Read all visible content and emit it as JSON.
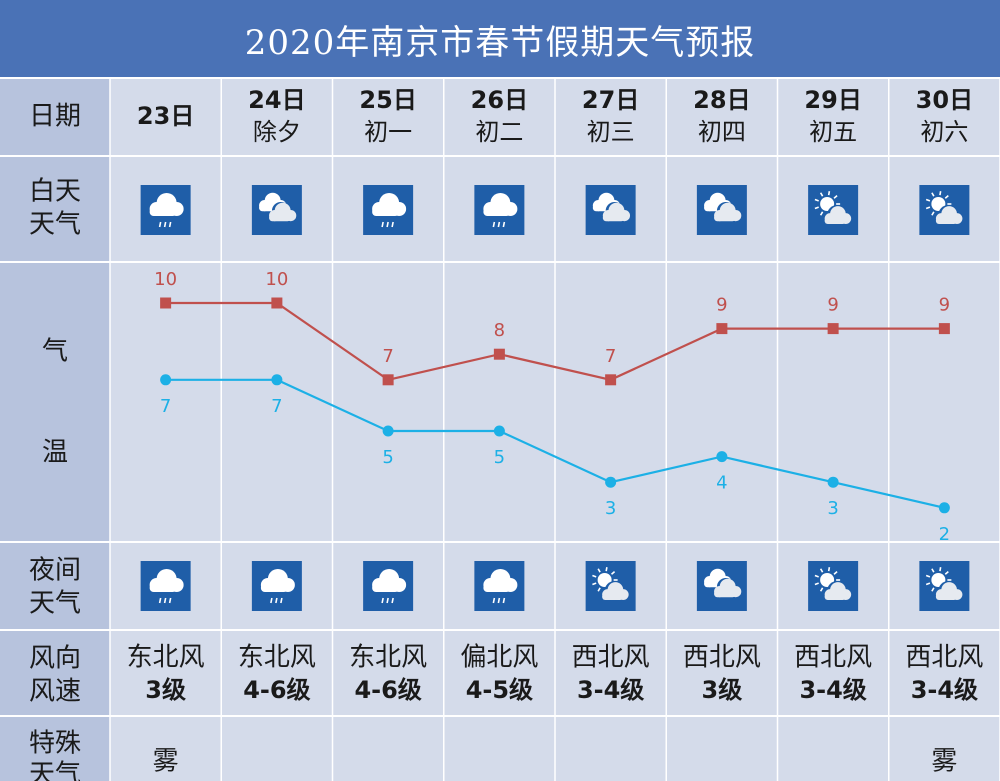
{
  "title": "2020年南京市春节假期天气预报",
  "row_labels": {
    "date": "日期",
    "day_weather": [
      "白天",
      "天气"
    ],
    "temp": [
      "气",
      "温"
    ],
    "night_weather": [
      "夜间",
      "天气"
    ],
    "wind": [
      "风向",
      "风速"
    ],
    "special": [
      "特殊",
      "天气"
    ]
  },
  "days": [
    {
      "date": "23日",
      "lunar": "",
      "day_icon": "rain-cloud-icon",
      "night_icon": "rain-cloud-icon",
      "wind_dir": "东北风",
      "wind_level": "3级",
      "special": "雾"
    },
    {
      "date": "24日",
      "lunar": "除夕",
      "day_icon": "overcast-cloud-icon",
      "night_icon": "rain-cloud-icon",
      "wind_dir": "东北风",
      "wind_level": "4-6级",
      "special": ""
    },
    {
      "date": "25日",
      "lunar": "初一",
      "day_icon": "rain-cloud-icon",
      "night_icon": "rain-cloud-icon",
      "wind_dir": "东北风",
      "wind_level": "4-6级",
      "special": ""
    },
    {
      "date": "26日",
      "lunar": "初二",
      "day_icon": "rain-cloud-icon",
      "night_icon": "rain-cloud-icon",
      "wind_dir": "偏北风",
      "wind_level": "4-5级",
      "special": ""
    },
    {
      "date": "27日",
      "lunar": "初三",
      "day_icon": "overcast-cloud-icon",
      "night_icon": "partly-cloudy-icon",
      "wind_dir": "西北风",
      "wind_level": "3-4级",
      "special": ""
    },
    {
      "date": "28日",
      "lunar": "初四",
      "day_icon": "overcast-cloud-icon",
      "night_icon": "overcast-cloud-icon",
      "wind_dir": "西北风",
      "wind_level": "3级",
      "special": ""
    },
    {
      "date": "29日",
      "lunar": "初五",
      "day_icon": "partly-cloudy-icon",
      "night_icon": "partly-cloudy-icon",
      "wind_dir": "西北风",
      "wind_level": "3-4级",
      "special": ""
    },
    {
      "date": "30日",
      "lunar": "初六",
      "day_icon": "partly-cloudy-icon",
      "night_icon": "partly-cloudy-icon",
      "wind_dir": "西北风",
      "wind_level": "3-4级",
      "special": "雾"
    }
  ],
  "colors": {
    "header_bg": "#4a72b6",
    "label_col_bg": "#b7c3dd",
    "cell_bg": "#d4dbea",
    "grid": "#ffffff",
    "icon_bg": "#1f5ea8",
    "high_line": "#c0504d",
    "low_line": "#1cb0e6"
  },
  "chart_data": {
    "type": "line",
    "x": [
      "23日",
      "24日",
      "25日",
      "26日",
      "27日",
      "28日",
      "29日",
      "30日"
    ],
    "series": [
      {
        "values": [
          10,
          10,
          7,
          8,
          7,
          9,
          9,
          9
        ],
        "color": "#c0504d",
        "marker": "square"
      },
      {
        "values": [
          7,
          7,
          5,
          5,
          3,
          4,
          3,
          2
        ],
        "color": "#1cb0e6",
        "marker": "circle"
      }
    ],
    "ylim": [
      0,
      12
    ],
    "grid": false,
    "data_labels": true
  }
}
